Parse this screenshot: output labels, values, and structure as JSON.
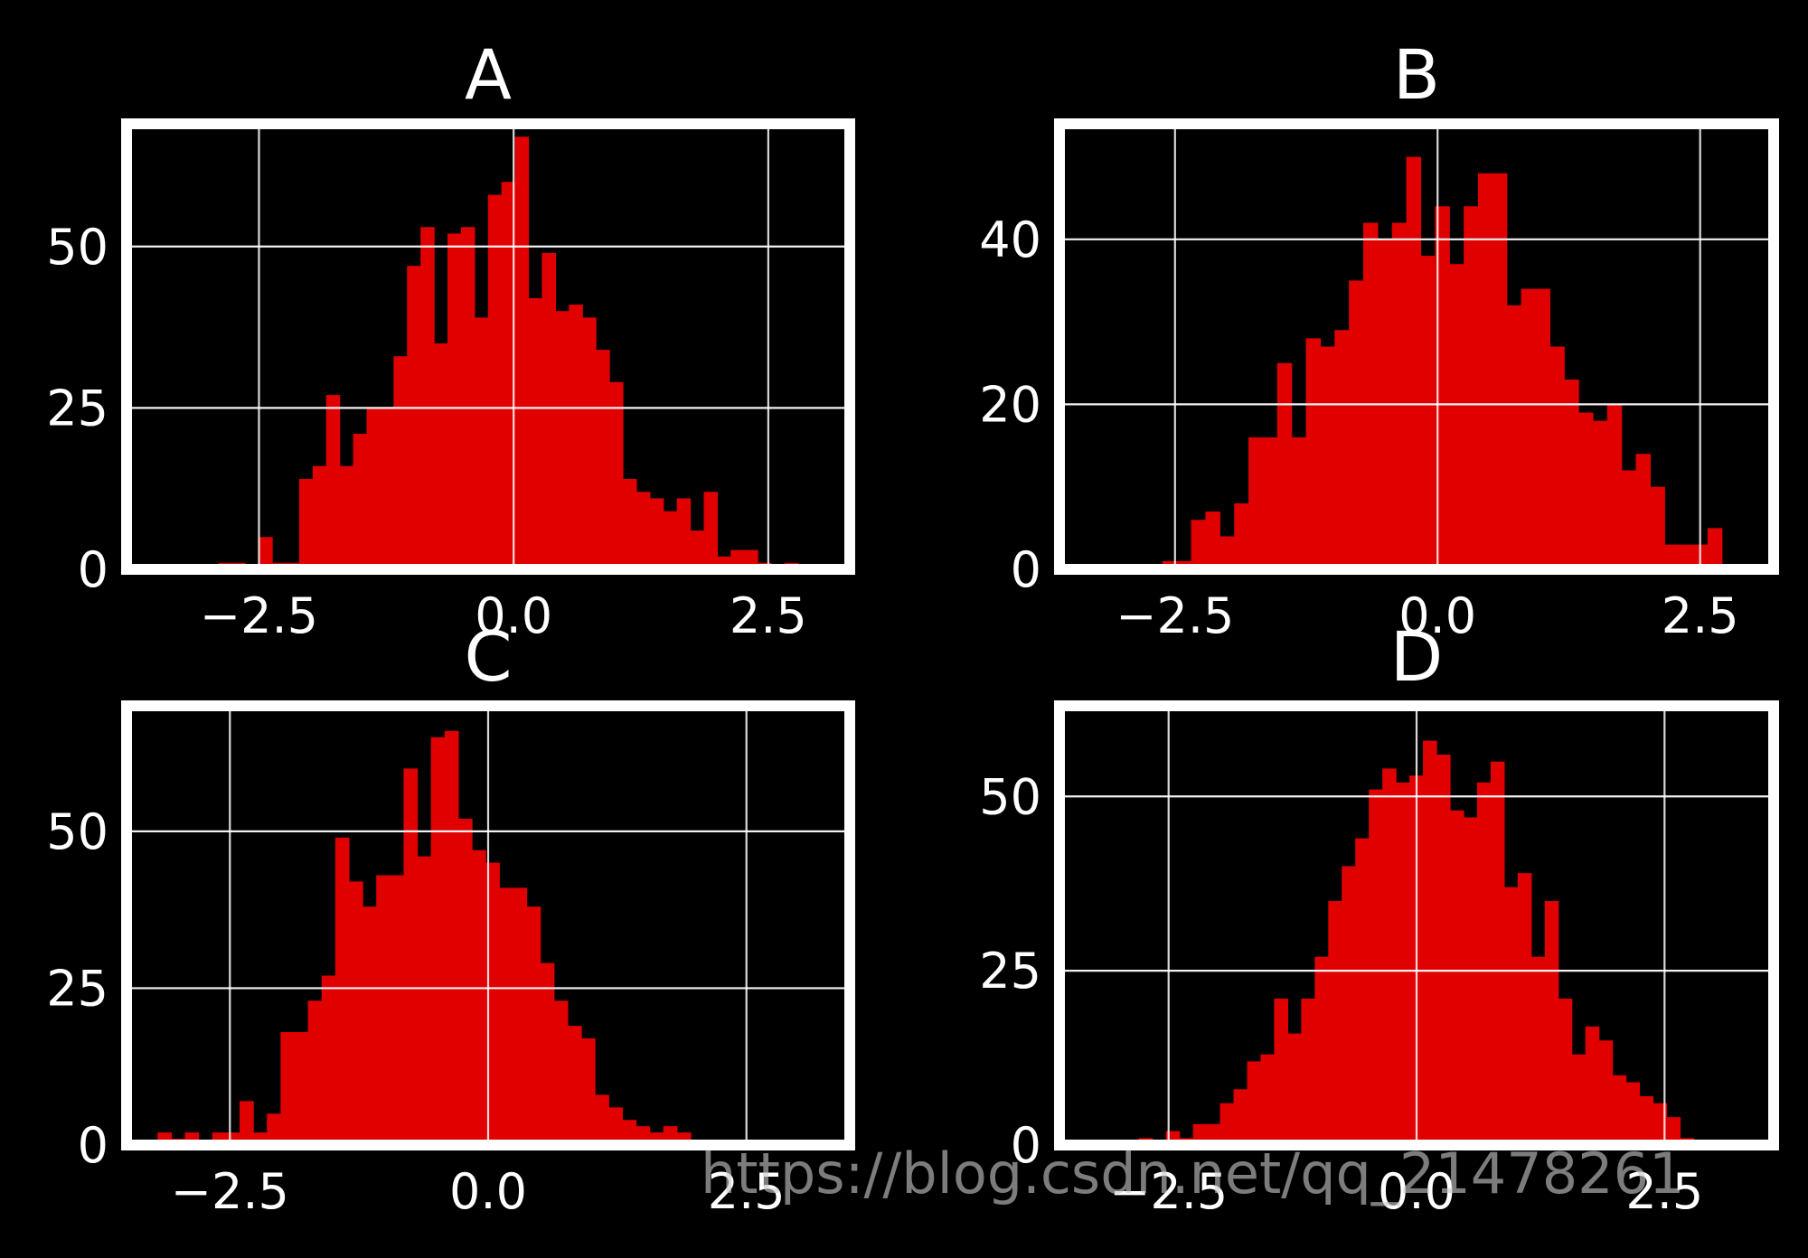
{
  "figure": {
    "background": "#000000",
    "bar_color": "#e10000",
    "axis_color": "#ffffff",
    "text_color": "#ffffff"
  },
  "chart_data": [
    {
      "type": "bar",
      "title": "A",
      "xlim": [
        -3.8,
        3.3
      ],
      "ylim": [
        0,
        69
      ],
      "xticks": [
        -2.5,
        0.0,
        2.5
      ],
      "xtick_labels": [
        "−2.5",
        "0.0",
        "2.5"
      ],
      "yticks": [
        0,
        25,
        50
      ],
      "ytick_labels": [
        "0",
        "25",
        "50"
      ],
      "grid": true,
      "bin_edges_start": -2.9,
      "bin_width": 0.1324,
      "values": [
        1,
        1,
        0,
        5,
        1,
        1,
        14,
        16,
        27,
        16,
        21,
        25,
        25,
        33,
        47,
        53,
        35,
        52,
        53,
        39,
        58,
        60,
        67,
        42,
        49,
        40,
        41,
        39,
        34,
        29,
        14,
        12,
        11,
        9,
        11,
        6,
        12,
        2,
        3,
        3,
        1,
        0,
        1
      ]
    },
    {
      "type": "bar",
      "title": "B",
      "xlim": [
        -3.6,
        3.2
      ],
      "ylim": [
        0,
        54
      ],
      "xticks": [
        -2.5,
        0.0,
        2.5
      ],
      "xtick_labels": [
        "−2.5",
        "0.0",
        "2.5"
      ],
      "yticks": [
        0,
        20,
        40
      ],
      "ytick_labels": [
        "0",
        "20",
        "40"
      ],
      "grid": true,
      "bin_edges_start": -2.62,
      "bin_width": 0.1366,
      "values": [
        1,
        1,
        6,
        7,
        4,
        8,
        16,
        16,
        25,
        16,
        28,
        27,
        29,
        35,
        42,
        40,
        42,
        50,
        38,
        44,
        37,
        44,
        48,
        48,
        32,
        34,
        34,
        27,
        23,
        19,
        18,
        20,
        12,
        14,
        10,
        3,
        3,
        3,
        5
      ]
    },
    {
      "type": "bar",
      "title": "C",
      "xlim": [
        -3.5,
        3.5
      ],
      "ylim": [
        0,
        70
      ],
      "xticks": [
        -2.5,
        0.0,
        2.5
      ],
      "xtick_labels": [
        "−2.5",
        "0.0",
        "2.5"
      ],
      "yticks": [
        0,
        25,
        50
      ],
      "ytick_labels": [
        "0",
        "25",
        "50"
      ],
      "grid": true,
      "bin_edges_start": -3.2,
      "bin_width": 0.1323,
      "values": [
        2,
        1,
        2,
        0,
        2,
        2,
        7,
        2,
        5,
        18,
        18,
        23,
        27,
        49,
        42,
        38,
        43,
        43,
        60,
        46,
        65,
        66,
        52,
        47,
        45,
        41,
        41,
        38,
        29,
        23,
        19,
        17,
        8,
        6,
        4,
        3,
        2,
        3,
        2
      ]
    },
    {
      "type": "bar",
      "title": "D",
      "xlim": [
        -3.6,
        3.6
      ],
      "ylim": [
        0,
        63
      ],
      "xticks": [
        -2.5,
        0.0,
        2.5
      ],
      "xtick_labels": [
        "−2.5",
        "0.0",
        "2.5"
      ],
      "yticks": [
        0,
        25,
        50
      ],
      "ytick_labels": [
        "0",
        "25",
        "50"
      ],
      "grid": true,
      "bin_edges_start": -2.8,
      "bin_width": 0.1364,
      "values": [
        1,
        0,
        2,
        1,
        3,
        3,
        6,
        8,
        12,
        13,
        21,
        16,
        21,
        27,
        35,
        40,
        44,
        51,
        54,
        52,
        53,
        58,
        56,
        48,
        47,
        52,
        55,
        37,
        39,
        27,
        35,
        21,
        13,
        17,
        15,
        10,
        9,
        7,
        6,
        4,
        1
      ]
    }
  ],
  "watermark": {
    "text": "https://blog.csdn.net/qq_21478261"
  }
}
